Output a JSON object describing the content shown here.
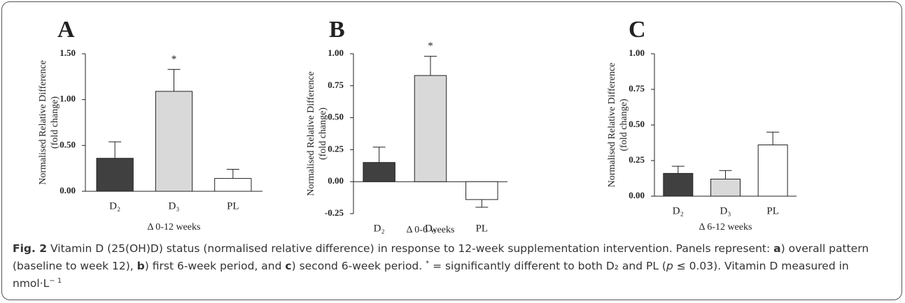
{
  "chart_data": [
    {
      "type": "bar",
      "panel_label": "A",
      "ylabel": [
        "Normalised Relative Difference",
        "(fold change)"
      ],
      "xlabel": "Δ 0-12 weeks",
      "categories": [
        "D₂",
        "D₃",
        "PL"
      ],
      "values": [
        0.36,
        1.09,
        0.14
      ],
      "errors": [
        0.18,
        0.24,
        0.1
      ],
      "markers": [
        null,
        "*",
        null
      ],
      "colors": [
        "#404040",
        "#d9d9d9",
        "#ffffff"
      ],
      "ylim": [
        0,
        1.5
      ],
      "yticks": [
        {
          "value": 0,
          "label": "0.00"
        },
        {
          "value": 0.5,
          "label": "0.50"
        },
        {
          "value": 1,
          "label": "1.00"
        },
        {
          "value": 1.5,
          "label": "1.50"
        }
      ]
    },
    {
      "type": "bar",
      "panel_label": "B",
      "ylabel": [
        "Normalised Relative Difference",
        "(fold change)"
      ],
      "xlabel": "Δ 0-6 weeks",
      "categories": [
        "D₂",
        "D₃",
        "PL"
      ],
      "values": [
        0.15,
        0.83,
        -0.14
      ],
      "errors": [
        0.12,
        0.15,
        0.06
      ],
      "markers": [
        null,
        "*",
        null
      ],
      "colors": [
        "#404040",
        "#d9d9d9",
        "#ffffff"
      ],
      "ylim": [
        -0.25,
        1
      ],
      "yticks": [
        {
          "value": -0.25,
          "label": "-0.25"
        },
        {
          "value": 0,
          "label": "0.00"
        },
        {
          "value": 0.25,
          "label": "0.25"
        },
        {
          "value": 0.5,
          "label": "0.50"
        },
        {
          "value": 0.75,
          "label": "0.75"
        },
        {
          "value": 1,
          "label": "1.00"
        }
      ]
    },
    {
      "type": "bar",
      "panel_label": "C",
      "ylabel": [
        "Normalised Relative Difference",
        "(fold change)"
      ],
      "xlabel": "Δ 6-12 weeks",
      "categories": [
        "D₂",
        "D₃",
        "PL"
      ],
      "values": [
        0.16,
        0.12,
        0.36
      ],
      "errors": [
        0.05,
        0.06,
        0.09
      ],
      "markers": [
        null,
        null,
        null
      ],
      "colors": [
        "#404040",
        "#d9d9d9",
        "#ffffff"
      ],
      "ylim": [
        0,
        1
      ],
      "yticks": [
        {
          "value": 0,
          "label": "0.00"
        },
        {
          "value": 0.25,
          "label": "0.25"
        },
        {
          "value": 0.5,
          "label": "0.50"
        },
        {
          "value": 0.75,
          "label": "0.75"
        },
        {
          "value": 1,
          "label": "1.00"
        }
      ]
    }
  ],
  "caption": [
    {
      "text": "Fig. 2",
      "style": "bold"
    },
    {
      "text": " Vitamin D (25(OH)D) status (normalised relative difference) in response to 12-week supplementation intervention. Panels represent: ",
      "style": "normal"
    },
    {
      "text": "a",
      "style": "bold"
    },
    {
      "text": ") overall pattern (baseline to week 12), ",
      "style": "normal"
    },
    {
      "text": "b",
      "style": "bold"
    },
    {
      "text": ") first 6-week period, and ",
      "style": "normal"
    },
    {
      "text": "c",
      "style": "bold"
    },
    {
      "text": ") second 6-week period. ",
      "style": "normal"
    },
    {
      "text": "*",
      "style": "sup"
    },
    {
      "text": " = significantly different to both D₂ and PL (",
      "style": "normal"
    },
    {
      "text": "p",
      "style": "italic"
    },
    {
      "text": " ≤ 0.03). Vitamin D measured in nmol·L",
      "style": "normal"
    },
    {
      "text": "− 1",
      "style": "sup"
    }
  ]
}
